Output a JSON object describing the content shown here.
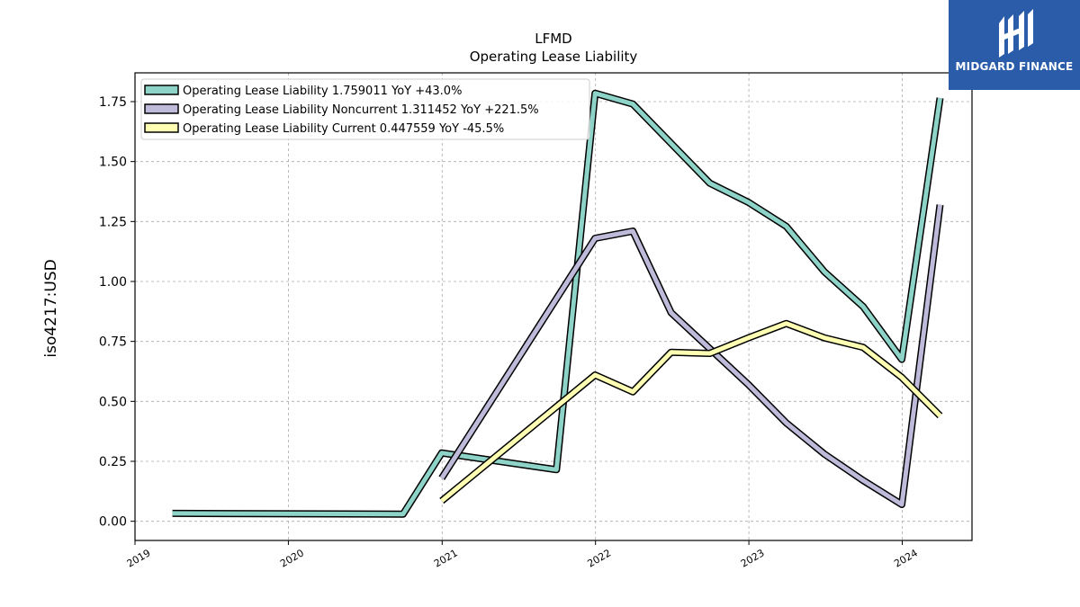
{
  "chart_data": {
    "type": "line",
    "title": "LFMD",
    "subtitle": "Operating Lease Liability",
    "ylabel": "iso4217:USD",
    "xlabel": "",
    "xlim": [
      "2019-01-01",
      "2024-06-15"
    ],
    "ylim": [
      -0.08,
      1.87
    ],
    "x_ticks": [
      "2019",
      "2020",
      "2021",
      "2022",
      "2023",
      "2024"
    ],
    "y_ticks": [
      "0.00",
      "0.25",
      "0.50",
      "0.75",
      "1.00",
      "1.25",
      "1.50",
      "1.75"
    ],
    "y_tick_values": [
      0,
      0.25,
      0.5,
      0.75,
      1.0,
      1.25,
      1.5,
      1.75
    ],
    "grid": true,
    "legend_position": "top-left",
    "series": [
      {
        "name": "Operating Lease Liability  1.759011 YoY +43.0%",
        "color": "#8dd3c7",
        "x": [
          "2019-03-31",
          "2020-09-30",
          "2020-12-31",
          "2021-09-30",
          "2021-12-31",
          "2022-03-31",
          "2022-09-30",
          "2022-12-31",
          "2023-03-31",
          "2023-06-30",
          "2023-09-30",
          "2023-12-31",
          "2024-03-31"
        ],
        "values": [
          0.033,
          0.03,
          0.285,
          0.215,
          1.785,
          1.74,
          1.41,
          1.33,
          1.23,
          1.04,
          0.895,
          0.675,
          1.765
        ]
      },
      {
        "name": "Operating Lease Liability Noncurrent  1.311452 YoY +221.5%",
        "color": "#bebada",
        "x": [
          "2020-12-31",
          "2021-12-31",
          "2022-03-31",
          "2022-06-30",
          "2022-12-31",
          "2023-03-31",
          "2023-06-30",
          "2023-09-30",
          "2023-12-31",
          "2024-03-31"
        ],
        "values": [
          0.18,
          1.18,
          1.21,
          0.87,
          0.57,
          0.41,
          0.28,
          0.17,
          0.07,
          1.32
        ]
      },
      {
        "name": "Operating Lease Liability Current  0.447559 YoY -45.5%",
        "color": "#ffffb3",
        "x": [
          "2020-12-31",
          "2021-12-31",
          "2022-03-31",
          "2022-06-30",
          "2022-09-30",
          "2022-12-31",
          "2023-03-31",
          "2023-06-30",
          "2023-09-30",
          "2023-12-31",
          "2024-03-31"
        ],
        "values": [
          0.085,
          0.61,
          0.54,
          0.705,
          0.7,
          0.765,
          0.825,
          0.765,
          0.725,
          0.6,
          0.44
        ]
      }
    ]
  },
  "logo": {
    "text": "MIDGARD FINANCE",
    "color": "#2a5caa"
  }
}
